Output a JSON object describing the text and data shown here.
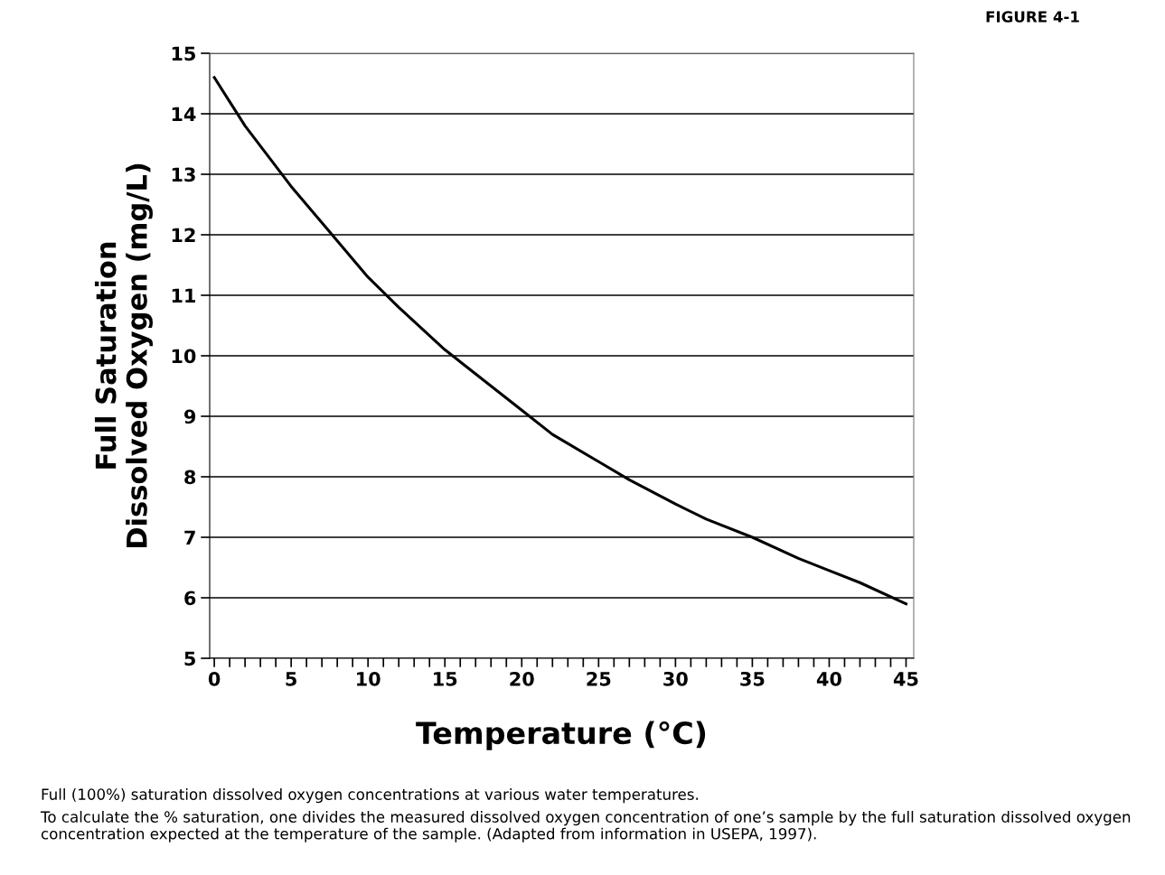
{
  "chart_data": {
    "type": "line",
    "title": "FIGURE 4-1",
    "xlabel": "Temperature (°C)",
    "ylabel": "Full Saturation\nDissolved Oxygen (mg/L)",
    "x": [
      0,
      2,
      5,
      8,
      10,
      12,
      15,
      18,
      20,
      22,
      25,
      27,
      30,
      32,
      35,
      38,
      40,
      42,
      45
    ],
    "series": [
      {
        "color": "#000000",
        "values": [
          14.6,
          13.8,
          12.8,
          11.9,
          11.3,
          10.8,
          10.1,
          9.5,
          9.1,
          8.7,
          8.25,
          7.95,
          7.55,
          7.3,
          7.0,
          6.65,
          6.45,
          6.25,
          5.9
        ]
      }
    ],
    "xlim": [
      -0.3,
      45.5
    ],
    "xticks": [
      0,
      {
        "value": 1,
        "label": null
      },
      {
        "value": 2,
        "label": null
      },
      {
        "value": 3,
        "label": null
      },
      {
        "value": 4,
        "label": null
      },
      5,
      {
        "value": 6,
        "label": null
      },
      {
        "value": 7,
        "label": null
      },
      {
        "value": 8,
        "label": null
      },
      {
        "value": 9,
        "label": null
      },
      10,
      {
        "value": 11,
        "label": null
      },
      {
        "value": 12,
        "label": null
      },
      {
        "value": 13,
        "label": null
      },
      {
        "value": 14,
        "label": null
      },
      15,
      {
        "value": 16,
        "label": null
      },
      {
        "value": 17,
        "label": null
      },
      {
        "value": 18,
        "label": null
      },
      {
        "value": 19,
        "label": null
      },
      20,
      {
        "value": 21,
        "label": null
      },
      {
        "value": 22,
        "label": null
      },
      {
        "value": 23,
        "label": null
      },
      {
        "value": 24,
        "label": null
      },
      25,
      {
        "value": 26,
        "label": null
      },
      {
        "value": 27,
        "label": null
      },
      {
        "value": 28,
        "label": null
      },
      {
        "value": 29,
        "label": null
      },
      30,
      {
        "value": 31,
        "label": null
      },
      {
        "value": 32,
        "label": null
      },
      {
        "value": 33,
        "label": null
      },
      {
        "value": 34,
        "label": null
      },
      35,
      {
        "value": 36,
        "label": null
      },
      {
        "value": 37,
        "label": null
      },
      {
        "value": 38,
        "label": null
      },
      {
        "value": 39,
        "label": null
      },
      40,
      {
        "value": 41,
        "label": null
      },
      {
        "value": 42,
        "label": null
      },
      {
        "value": 43,
        "label": null
      },
      {
        "value": 44,
        "label": null
      },
      45
    ],
    "ylim": [
      5,
      15
    ],
    "yticks": [
      5,
      6,
      7,
      8,
      9,
      10,
      11,
      12,
      13,
      14,
      15
    ],
    "grid": "y",
    "legend": false,
    "marker": "none",
    "line_style": "solid",
    "annotations": [
      "Full (100%) saturation dissolved oxygen concentrations at various water temperatures.",
      "To calculate the % saturation, one divides the measured dissolved oxygen concentration of one’s sample by the full saturation dissolved oxygen concentration expected at the temperature of the sample. (Adapted from information in USEPA, 1997)."
    ]
  }
}
